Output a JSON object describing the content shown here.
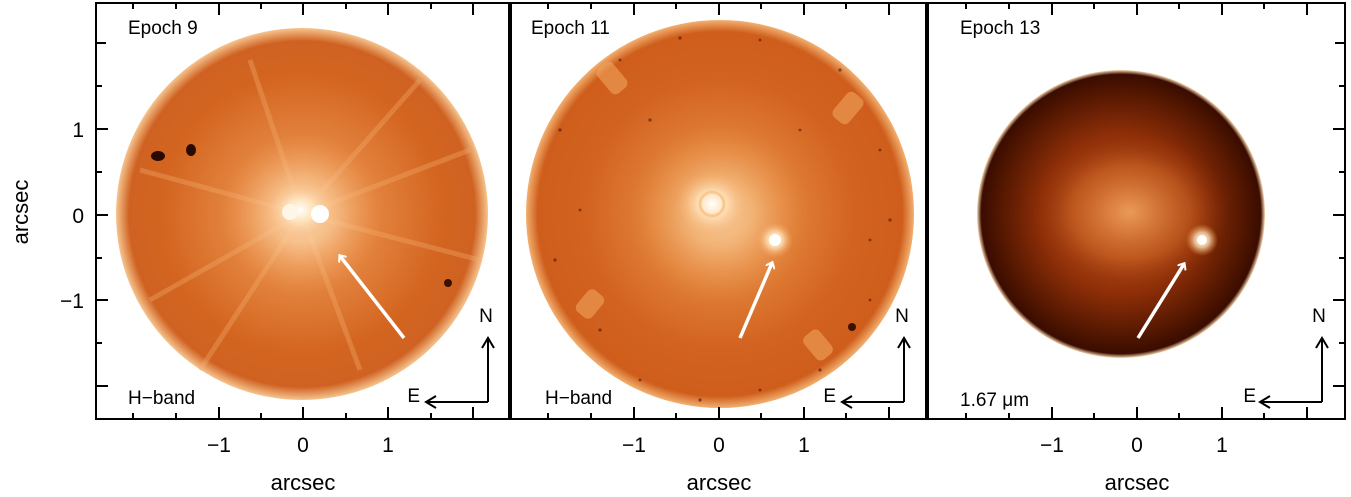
{
  "figure": {
    "y_axis_label": "arcsec",
    "panels": [
      {
        "title": "Epoch 9",
        "filter_label": "H−band",
        "x_axis_label": "arcsec",
        "x_ticks": [
          "−1",
          "0",
          "1"
        ],
        "y_ticks": [
          "1",
          "0",
          "−1"
        ],
        "compass": {
          "north": "N",
          "east": "E"
        },
        "colors": {
          "disk_edge": "#f6c48e",
          "disk_mid": "#e07a2e",
          "disk_inner": "#c85a12",
          "core": "#ffffff"
        }
      },
      {
        "title": "Epoch 11",
        "filter_label": "H−band",
        "x_axis_label": "arcsec",
        "x_ticks": [
          "−1",
          "0",
          "1"
        ],
        "compass": {
          "north": "N",
          "east": "E"
        },
        "colors": {
          "disk_edge": "#f2b070",
          "disk_mid": "#d8691f",
          "disk_inner": "#c4561a",
          "core": "#ffffff"
        }
      },
      {
        "title": "Epoch 13",
        "filter_label": "1.67 μm",
        "x_axis_label": "arcsec",
        "x_ticks": [
          "−1",
          "0",
          "1"
        ],
        "compass": {
          "north": "N",
          "east": "E"
        },
        "colors": {
          "disk_edge": "#f8d8b0",
          "disk_mid": "#8a2a05",
          "disk_inner": "#4a1200",
          "core": "#ffe6c0"
        }
      }
    ]
  }
}
